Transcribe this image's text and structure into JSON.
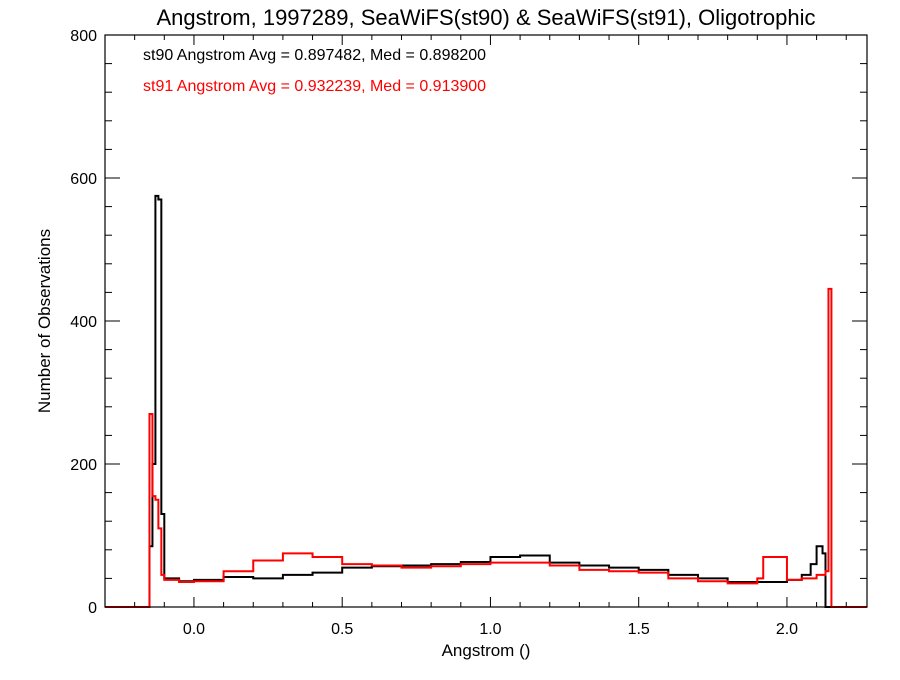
{
  "chart_data": {
    "type": "line",
    "step": true,
    "title": "Angstrom, 1997289, SeaWiFS(st90) & SeaWiFS(st91), Oligotrophic",
    "xlabel": "Angstrom ()",
    "ylabel": "Number of Observations",
    "xlim": [
      -0.3,
      2.27
    ],
    "ylim": [
      0,
      800
    ],
    "xticks": [
      0.0,
      0.5,
      1.0,
      1.5,
      2.0
    ],
    "xtick_labels": [
      "0.0",
      "0.5",
      "1.0",
      "1.5",
      "2.0"
    ],
    "yticks": [
      0,
      200,
      400,
      600,
      800
    ],
    "ytick_labels": [
      "0",
      "200",
      "400",
      "600",
      "800"
    ],
    "grid": false,
    "annotations": [
      {
        "text": "st90 Angstrom Avg = 0.897482, Med = 0.898200",
        "color": "#000000"
      },
      {
        "text": "st91 Angstrom Avg = 0.932239, Med = 0.913900",
        "color": "#ff0000"
      }
    ],
    "series": [
      {
        "color": "#000000",
        "x": [
          -0.3,
          -0.16,
          -0.15,
          -0.14,
          -0.13,
          -0.12,
          -0.11,
          -0.1,
          -0.05,
          0.0,
          0.1,
          0.2,
          0.3,
          0.4,
          0.5,
          0.6,
          0.7,
          0.8,
          0.9,
          1.0,
          1.1,
          1.2,
          1.3,
          1.4,
          1.5,
          1.6,
          1.7,
          1.8,
          1.9,
          2.0,
          2.05,
          2.08,
          2.1,
          2.12,
          2.13,
          2.15,
          2.27
        ],
        "y": [
          0,
          0,
          85,
          200,
          575,
          570,
          130,
          40,
          36,
          38,
          42,
          40,
          45,
          48,
          55,
          57,
          58,
          60,
          63,
          70,
          72,
          62,
          58,
          55,
          52,
          45,
          40,
          35,
          35,
          38,
          45,
          60,
          85,
          75,
          0,
          0,
          0
        ]
      },
      {
        "color": "#ff0000",
        "x": [
          -0.3,
          -0.16,
          -0.15,
          -0.14,
          -0.13,
          -0.12,
          -0.11,
          -0.1,
          -0.05,
          0.0,
          0.1,
          0.2,
          0.3,
          0.4,
          0.5,
          0.6,
          0.7,
          0.8,
          0.9,
          1.0,
          1.1,
          1.2,
          1.3,
          1.4,
          1.5,
          1.6,
          1.7,
          1.8,
          1.9,
          1.92,
          2.0,
          2.05,
          2.1,
          2.13,
          2.14,
          2.15,
          2.27
        ],
        "y": [
          0,
          0,
          270,
          155,
          150,
          110,
          45,
          38,
          35,
          36,
          50,
          65,
          75,
          70,
          60,
          58,
          55,
          57,
          60,
          62,
          62,
          58,
          52,
          50,
          48,
          40,
          36,
          33,
          40,
          70,
          38,
          40,
          45,
          50,
          445,
          0,
          0
        ]
      }
    ]
  }
}
